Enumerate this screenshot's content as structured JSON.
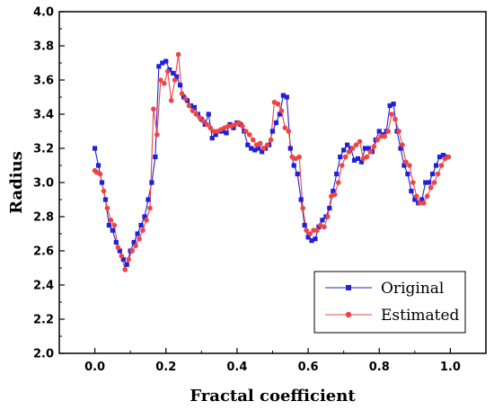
{
  "chart_data": {
    "type": "line",
    "title": "",
    "xlabel": "Fractal coefficient",
    "ylabel": "Radius",
    "xlim": [
      -0.1,
      1.1
    ],
    "ylim": [
      2.0,
      4.0
    ],
    "xticks": [
      0.0,
      0.2,
      0.4,
      0.6,
      0.8,
      1.0
    ],
    "xtick_labels": [
      "0.0",
      "0.2",
      "0.4",
      "0.6",
      "0.8",
      "1.0"
    ],
    "yticks": [
      2.0,
      2.2,
      2.4,
      2.6,
      2.8,
      3.0,
      3.2,
      3.4,
      3.6,
      3.8,
      4.0
    ],
    "ytick_labels": [
      "2.0",
      "2.2",
      "2.4",
      "2.6",
      "2.8",
      "3.0",
      "3.2",
      "3.4",
      "3.6",
      "3.8",
      "4.0"
    ],
    "grid": false,
    "legend_position": "bottom-right",
    "series": [
      {
        "name": "Original",
        "color": "#2020d8",
        "marker": "square",
        "points": [
          [
            0.0,
            3.2
          ],
          [
            0.01,
            3.1
          ],
          [
            0.02,
            3.0
          ],
          [
            0.03,
            2.9
          ],
          [
            0.04,
            2.75
          ],
          [
            0.05,
            2.72
          ],
          [
            0.06,
            2.65
          ],
          [
            0.07,
            2.6
          ],
          [
            0.08,
            2.55
          ],
          [
            0.09,
            2.52
          ],
          [
            0.1,
            2.6
          ],
          [
            0.11,
            2.65
          ],
          [
            0.12,
            2.7
          ],
          [
            0.13,
            2.75
          ],
          [
            0.14,
            2.8
          ],
          [
            0.15,
            2.9
          ],
          [
            0.16,
            3.0
          ],
          [
            0.17,
            3.15
          ],
          [
            0.18,
            3.68
          ],
          [
            0.19,
            3.7
          ],
          [
            0.2,
            3.71
          ],
          [
            0.21,
            3.66
          ],
          [
            0.22,
            3.64
          ],
          [
            0.23,
            3.62
          ],
          [
            0.24,
            3.57
          ],
          [
            0.25,
            3.5
          ],
          [
            0.26,
            3.48
          ],
          [
            0.27,
            3.45
          ],
          [
            0.28,
            3.44
          ],
          [
            0.29,
            3.4
          ],
          [
            0.3,
            3.37
          ],
          [
            0.31,
            3.34
          ],
          [
            0.32,
            3.4
          ],
          [
            0.33,
            3.26
          ],
          [
            0.34,
            3.28
          ],
          [
            0.35,
            3.3
          ],
          [
            0.36,
            3.3
          ],
          [
            0.37,
            3.29
          ],
          [
            0.38,
            3.34
          ],
          [
            0.39,
            3.32
          ],
          [
            0.4,
            3.35
          ],
          [
            0.41,
            3.34
          ],
          [
            0.42,
            3.3
          ],
          [
            0.43,
            3.22
          ],
          [
            0.44,
            3.2
          ],
          [
            0.45,
            3.19
          ],
          [
            0.46,
            3.2
          ],
          [
            0.47,
            3.18
          ],
          [
            0.48,
            3.2
          ],
          [
            0.49,
            3.22
          ],
          [
            0.5,
            3.3
          ],
          [
            0.51,
            3.35
          ],
          [
            0.52,
            3.4
          ],
          [
            0.53,
            3.51
          ],
          [
            0.54,
            3.5
          ],
          [
            0.55,
            3.2
          ],
          [
            0.56,
            3.1
          ],
          [
            0.57,
            3.05
          ],
          [
            0.58,
            2.9
          ],
          [
            0.59,
            2.75
          ],
          [
            0.6,
            2.68
          ],
          [
            0.61,
            2.66
          ],
          [
            0.62,
            2.67
          ],
          [
            0.63,
            2.74
          ],
          [
            0.64,
            2.78
          ],
          [
            0.65,
            2.8
          ],
          [
            0.66,
            2.85
          ],
          [
            0.67,
            2.95
          ],
          [
            0.68,
            3.05
          ],
          [
            0.69,
            3.15
          ],
          [
            0.7,
            3.19
          ],
          [
            0.71,
            3.22
          ],
          [
            0.72,
            3.2
          ],
          [
            0.73,
            3.13
          ],
          [
            0.74,
            3.14
          ],
          [
            0.75,
            3.12
          ],
          [
            0.76,
            3.2
          ],
          [
            0.77,
            3.2
          ],
          [
            0.78,
            3.18
          ],
          [
            0.79,
            3.25
          ],
          [
            0.8,
            3.3
          ],
          [
            0.81,
            3.28
          ],
          [
            0.82,
            3.3
          ],
          [
            0.83,
            3.45
          ],
          [
            0.84,
            3.46
          ],
          [
            0.85,
            3.3
          ],
          [
            0.86,
            3.2
          ],
          [
            0.87,
            3.1
          ],
          [
            0.88,
            3.05
          ],
          [
            0.89,
            2.95
          ],
          [
            0.9,
            2.9
          ],
          [
            0.91,
            2.88
          ],
          [
            0.92,
            2.9
          ],
          [
            0.93,
            3.0
          ],
          [
            0.94,
            3.0
          ],
          [
            0.95,
            3.05
          ],
          [
            0.96,
            3.1
          ],
          [
            0.97,
            3.15
          ],
          [
            0.98,
            3.16
          ],
          [
            0.99,
            3.15
          ]
        ]
      },
      {
        "name": "Estimated",
        "color": "#ee4444",
        "marker": "circle",
        "points": [
          [
            0.0,
            3.07
          ],
          [
            0.005,
            3.06
          ],
          [
            0.015,
            3.05
          ],
          [
            0.025,
            2.95
          ],
          [
            0.035,
            2.85
          ],
          [
            0.045,
            2.78
          ],
          [
            0.055,
            2.75
          ],
          [
            0.065,
            2.62
          ],
          [
            0.075,
            2.57
          ],
          [
            0.085,
            2.49
          ],
          [
            0.095,
            2.55
          ],
          [
            0.105,
            2.6
          ],
          [
            0.115,
            2.63
          ],
          [
            0.125,
            2.67
          ],
          [
            0.135,
            2.72
          ],
          [
            0.145,
            2.78
          ],
          [
            0.155,
            2.85
          ],
          [
            0.165,
            3.43
          ],
          [
            0.175,
            3.28
          ],
          [
            0.185,
            3.6
          ],
          [
            0.195,
            3.58
          ],
          [
            0.205,
            3.65
          ],
          [
            0.215,
            3.48
          ],
          [
            0.225,
            3.6
          ],
          [
            0.235,
            3.75
          ],
          [
            0.245,
            3.52
          ],
          [
            0.255,
            3.49
          ],
          [
            0.265,
            3.45
          ],
          [
            0.275,
            3.42
          ],
          [
            0.285,
            3.4
          ],
          [
            0.295,
            3.38
          ],
          [
            0.305,
            3.36
          ],
          [
            0.315,
            3.34
          ],
          [
            0.325,
            3.32
          ],
          [
            0.335,
            3.3
          ],
          [
            0.345,
            3.3
          ],
          [
            0.355,
            3.31
          ],
          [
            0.365,
            3.32
          ],
          [
            0.375,
            3.33
          ],
          [
            0.385,
            3.33
          ],
          [
            0.395,
            3.34
          ],
          [
            0.405,
            3.35
          ],
          [
            0.415,
            3.33
          ],
          [
            0.425,
            3.3
          ],
          [
            0.435,
            3.28
          ],
          [
            0.445,
            3.25
          ],
          [
            0.455,
            3.22
          ],
          [
            0.465,
            3.23
          ],
          [
            0.475,
            3.2
          ],
          [
            0.485,
            3.22
          ],
          [
            0.495,
            3.25
          ],
          [
            0.505,
            3.47
          ],
          [
            0.515,
            3.46
          ],
          [
            0.525,
            3.42
          ],
          [
            0.535,
            3.32
          ],
          [
            0.545,
            3.3
          ],
          [
            0.555,
            3.15
          ],
          [
            0.565,
            3.14
          ],
          [
            0.575,
            3.15
          ],
          [
            0.585,
            2.85
          ],
          [
            0.595,
            2.72
          ],
          [
            0.605,
            2.7
          ],
          [
            0.615,
            2.72
          ],
          [
            0.625,
            2.72
          ],
          [
            0.635,
            2.75
          ],
          [
            0.645,
            2.74
          ],
          [
            0.655,
            2.8
          ],
          [
            0.665,
            2.92
          ],
          [
            0.675,
            2.93
          ],
          [
            0.685,
            3.0
          ],
          [
            0.695,
            3.1
          ],
          [
            0.705,
            3.15
          ],
          [
            0.715,
            3.18
          ],
          [
            0.725,
            3.2
          ],
          [
            0.735,
            3.22
          ],
          [
            0.745,
            3.24
          ],
          [
            0.755,
            3.14
          ],
          [
            0.765,
            3.15
          ],
          [
            0.775,
            3.18
          ],
          [
            0.785,
            3.21
          ],
          [
            0.795,
            3.25
          ],
          [
            0.805,
            3.27
          ],
          [
            0.815,
            3.27
          ],
          [
            0.825,
            3.3
          ],
          [
            0.835,
            3.4
          ],
          [
            0.845,
            3.37
          ],
          [
            0.855,
            3.3
          ],
          [
            0.865,
            3.22
          ],
          [
            0.875,
            3.12
          ],
          [
            0.885,
            3.1
          ],
          [
            0.895,
            3.0
          ],
          [
            0.905,
            2.92
          ],
          [
            0.915,
            2.88
          ],
          [
            0.925,
            2.88
          ],
          [
            0.935,
            2.92
          ],
          [
            0.945,
            2.97
          ],
          [
            0.955,
            3.0
          ],
          [
            0.965,
            3.05
          ],
          [
            0.975,
            3.1
          ],
          [
            0.985,
            3.14
          ],
          [
            0.995,
            3.15
          ]
        ]
      }
    ]
  }
}
